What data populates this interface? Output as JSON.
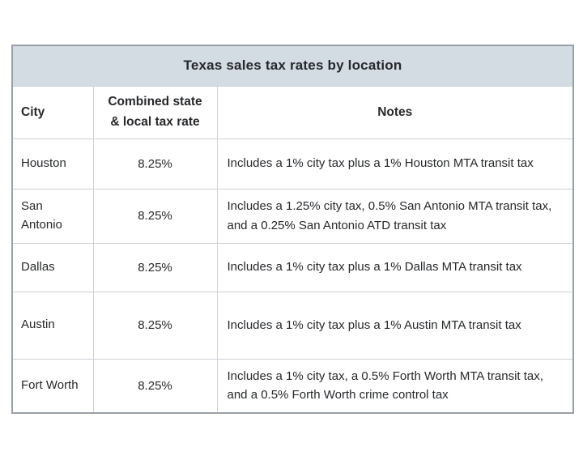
{
  "table": {
    "title": "Texas sales tax rates by location",
    "columns": [
      "City",
      "Combined state & local tax rate",
      "Notes"
    ],
    "rows": [
      {
        "city": "Houston",
        "rate": "8.25%",
        "notes": "Includes a 1% city tax plus a 1% Houston MTA transit tax"
      },
      {
        "city": "San Antonio",
        "rate": "8.25%",
        "notes": "Includes a 1.25% city tax, 0.5% San Antonio MTA transit tax, and a 0.25% San Antonio ATD transit tax"
      },
      {
        "city": "Dallas",
        "rate": "8.25%",
        "notes": "Includes a 1% city tax plus a 1% Dallas MTA transit tax"
      },
      {
        "city": "Austin",
        "rate": "8.25%",
        "notes": "Includes a 1% city tax plus a 1% Austin MTA transit tax"
      },
      {
        "city": "Fort Worth",
        "rate": "8.25%",
        "notes": "Includes a 1% city tax, a 0.5% Forth Worth MTA transit tax, and a 0.5% Forth Worth crime control tax"
      }
    ]
  },
  "colors": {
    "title_bar_bg": "#d3dce3",
    "border_outer": "#99a1a8",
    "border_inner": "#ccd2d7",
    "text": "#26282b",
    "page_bg": "#ffffff"
  },
  "chart_data": {
    "type": "table",
    "title": "Texas sales tax rates by location",
    "columns": [
      "City",
      "Combined state & local tax rate",
      "Notes"
    ],
    "rows": [
      [
        "Houston",
        "8.25%",
        "Includes a 1% city tax plus a 1% Houston MTA transit tax"
      ],
      [
        "San Antonio",
        "8.25%",
        "Includes a 1.25% city tax, 0.5% San Antonio MTA transit tax, and a 0.25% San Antonio ATD transit tax"
      ],
      [
        "Dallas",
        "8.25%",
        "Includes a 1% city tax plus a 1% Dallas MTA transit tax"
      ],
      [
        "Austin",
        "8.25%",
        "Includes a 1% city tax plus a 1% Austin MTA transit tax"
      ],
      [
        "Fort Worth",
        "8.25%",
        "Includes a 1% city tax, a 0.5% Forth Worth MTA transit tax, and a 0.5% Forth Worth crime control tax"
      ]
    ],
    "layout_hints": {
      "title_position": "top-banner",
      "rate_alignment": "center",
      "grid": "on"
    }
  }
}
